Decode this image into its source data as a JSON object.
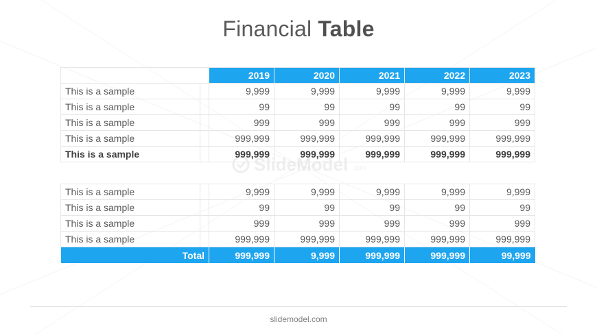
{
  "title": {
    "light": "Financial",
    "bold": "Table"
  },
  "watermark": {
    "name": "SlideModel",
    "suffix": ".com"
  },
  "years": [
    "2019",
    "2020",
    "2021",
    "2022",
    "2023"
  ],
  "table1": {
    "rows": [
      {
        "label": "This is a sample",
        "values": [
          "9,999",
          "9,999",
          "9,999",
          "9,999",
          "9,999"
        ],
        "bold": false
      },
      {
        "label": "This is a sample",
        "values": [
          "99",
          "99",
          "99",
          "99",
          "99"
        ],
        "bold": false
      },
      {
        "label": "This is a sample",
        "values": [
          "999",
          "999",
          "999",
          "999",
          "999"
        ],
        "bold": false
      },
      {
        "label": "This is a sample",
        "values": [
          "999,999",
          "999,999",
          "999,999",
          "999,999",
          "999,999"
        ],
        "bold": false
      },
      {
        "label": "This is a sample",
        "values": [
          "999,999",
          "999,999",
          "999,999",
          "999,999",
          "999,999"
        ],
        "bold": true
      }
    ]
  },
  "table2": {
    "rows": [
      {
        "label": "This is a sample",
        "values": [
          "9,999",
          "9,999",
          "9,999",
          "9,999",
          "9,999"
        ]
      },
      {
        "label": "This is a sample",
        "values": [
          "99",
          "99",
          "99",
          "99",
          "99"
        ]
      },
      {
        "label": "This is a sample",
        "values": [
          "999",
          "999",
          "999",
          "999",
          "999"
        ]
      },
      {
        "label": "This is a sample",
        "values": [
          "999,999",
          "999,999",
          "999,999",
          "999,999",
          "999,999"
        ]
      }
    ],
    "total": {
      "label": "Total",
      "values": [
        "999,999",
        "9,999",
        "999,999",
        "999,999",
        "99,999"
      ]
    }
  },
  "footer": "slidemodel.com",
  "colors": {
    "accent": "#1ea5f0",
    "text": "#595959",
    "grid": "#e6e6e6"
  }
}
